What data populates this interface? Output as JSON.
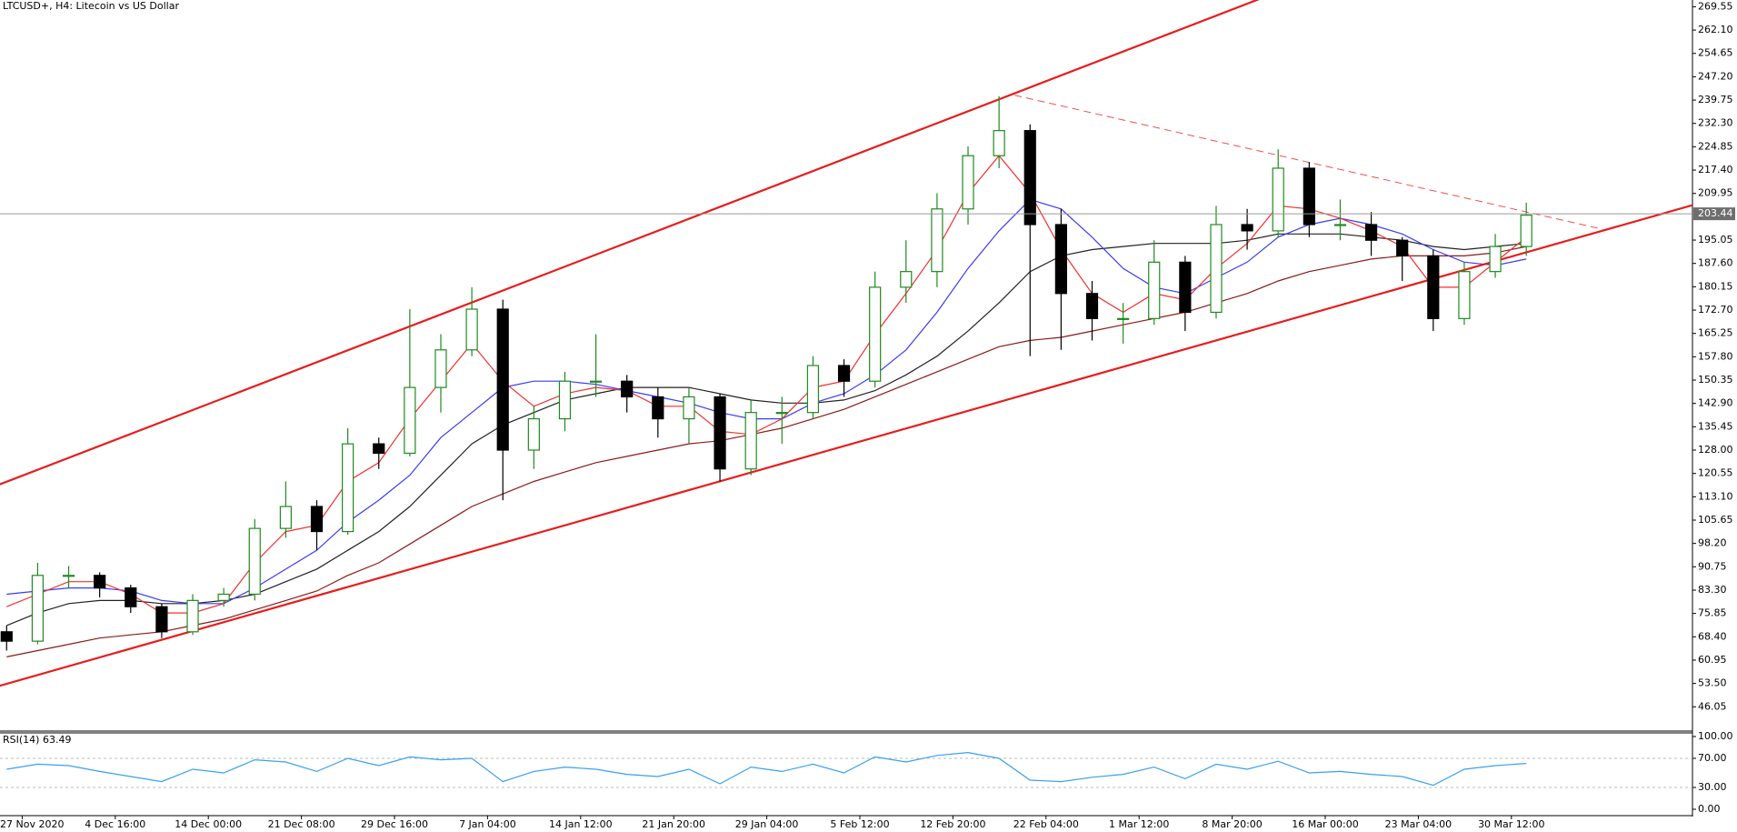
{
  "chart_data": {
    "type": "candlestick",
    "title": "LTCUSD+, H4:  Litecoin vs US Dollar",
    "ylim": [
      38.3,
      271.7
    ],
    "yticks": [
      46.05,
      {
        "value": 53.5,
        "label": "53.50"
      },
      60.95,
      {
        "value": 68.4,
        "label": "68.40"
      },
      75.85,
      {
        "value": 83.3,
        "label": "83.30"
      },
      90.75,
      {
        "value": 98.2,
        "label": "98.20"
      },
      105.65,
      {
        "value": 113.1,
        "label": "113.10"
      },
      120.55,
      {
        "value": 128,
        "label": "128.00"
      },
      135.45,
      {
        "value": 142.9,
        "label": "142.90"
      },
      150.35,
      {
        "value": 157.8,
        "label": "157.80"
      },
      165.25,
      {
        "value": 172.7,
        "label": "172.70"
      },
      180.15,
      {
        "value": 187.6,
        "label": "187.60"
      },
      195.05,
      209.95,
      {
        "value": 217.4,
        "label": "217.40"
      },
      224.85,
      {
        "value": 232.3,
        "label": "232.30"
      },
      239.75,
      {
        "value": 247.2,
        "label": "247.20"
      },
      254.65,
      {
        "value": 262.1,
        "label": "262.10"
      },
      269.55
    ],
    "current_price": 203.44,
    "x_labels": [
      "27 Nov 2020",
      "4 Dec 16:00",
      "14 Dec 00:00",
      "21 Dec 08:00",
      "29 Dec 16:00",
      "7 Jan 04:00",
      "14 Jan 12:00",
      "21 Jan 20:00",
      "29 Jan 04:00",
      "5 Feb 12:00",
      "12 Feb 20:00",
      "22 Feb 04:00",
      "1 Mar 12:00",
      "8 Mar 20:00",
      "16 Mar 00:00",
      "23 Mar 04:00",
      "30 Mar 12:00"
    ],
    "up_color": "#1f8a1f",
    "down_color": "#000000",
    "candles": {
      "open": [
        70,
        67,
        88,
        88,
        84,
        78,
        70,
        80,
        82,
        103,
        110,
        102,
        130,
        127,
        148,
        160,
        173,
        128,
        138,
        150,
        150,
        145,
        138,
        145,
        122,
        140,
        140,
        155,
        150,
        180,
        185,
        205,
        222,
        230,
        200,
        178,
        170,
        170,
        188,
        172,
        200,
        198,
        218,
        200,
        200,
        195,
        190,
        170,
        185,
        193
      ],
      "high": [
        72,
        92,
        91,
        89,
        85,
        79,
        82,
        84,
        106,
        118,
        112,
        135,
        132,
        173,
        165,
        180,
        176,
        142,
        153,
        165,
        152,
        148,
        148,
        146,
        144,
        145,
        158,
        157,
        185,
        195,
        210,
        225,
        241,
        232,
        205,
        182,
        175,
        195,
        190,
        206,
        205,
        224,
        220,
        208,
        204,
        196,
        192,
        188,
        197,
        207
      ],
      "low": [
        64,
        66,
        84,
        81,
        76,
        68,
        69,
        78,
        80,
        100,
        96,
        101,
        122,
        126,
        140,
        158,
        112,
        122,
        134,
        145,
        140,
        132,
        130,
        118,
        120,
        130,
        138,
        145,
        148,
        175,
        180,
        200,
        218,
        158,
        160,
        163,
        162,
        168,
        166,
        170,
        192,
        196,
        196,
        195,
        190,
        182,
        166,
        168,
        183,
        190
      ],
      "close": [
        67,
        88,
        88,
        84,
        78,
        70,
        80,
        82,
        103,
        110,
        102,
        130,
        127,
        148,
        160,
        173,
        128,
        138,
        150,
        150,
        145,
        138,
        145,
        122,
        140,
        140,
        155,
        150,
        180,
        185,
        205,
        222,
        230,
        200,
        178,
        170,
        170,
        188,
        172,
        200,
        198,
        218,
        200,
        200,
        195,
        190,
        170,
        185,
        193,
        203
      ]
    },
    "series": [
      {
        "color": "#8b1a1a",
        "values": [
          62,
          64,
          66,
          68,
          69,
          70,
          72,
          74,
          77,
          80,
          83,
          88,
          92,
          98,
          104,
          110,
          114,
          118,
          121,
          124,
          126,
          128,
          130,
          131,
          133,
          135,
          138,
          141,
          145,
          149,
          153,
          157,
          161,
          163,
          164,
          166,
          168,
          170,
          172,
          175,
          178,
          182,
          185,
          187,
          189,
          190,
          190,
          190,
          191,
          193
        ]
      },
      {
        "color": "#222222",
        "values": [
          72,
          76,
          79,
          80,
          80,
          79,
          79,
          80,
          82,
          86,
          90,
          96,
          102,
          110,
          120,
          130,
          136,
          140,
          144,
          146,
          148,
          148,
          148,
          146,
          144,
          143,
          143,
          144,
          147,
          152,
          158,
          166,
          175,
          185,
          190,
          192,
          193,
          194,
          194,
          194,
          195,
          197,
          197,
          197,
          196,
          195,
          193,
          192,
          193,
          194
        ]
      },
      {
        "color": "#3b3bf0",
        "values": [
          82,
          83,
          84,
          84,
          83,
          80,
          79,
          79,
          84,
          90,
          96,
          105,
          112,
          120,
          132,
          140,
          148,
          150,
          150,
          149,
          147,
          145,
          143,
          140,
          138,
          138,
          143,
          146,
          152,
          160,
          172,
          186,
          198,
          208,
          205,
          196,
          186,
          180,
          178,
          183,
          188,
          196,
          200,
          202,
          200,
          197,
          192,
          188,
          187,
          189
        ]
      },
      {
        "color": "#f03030",
        "values": [
          78,
          82,
          86,
          86,
          82,
          76,
          76,
          79,
          92,
          102,
          104,
          118,
          124,
          138,
          150,
          162,
          150,
          142,
          146,
          148,
          147,
          142,
          142,
          134,
          133,
          138,
          148,
          150,
          165,
          178,
          192,
          210,
          222,
          210,
          192,
          178,
          172,
          178,
          176,
          186,
          194,
          206,
          205,
          202,
          198,
          193,
          180,
          180,
          188,
          196
        ]
      }
    ],
    "trendlines": [
      {
        "color": "#e81c1c",
        "dashed": false,
        "extend": true,
        "points": [
          [
            -0.21,
            117.1
          ],
          [
            32.5,
            241.9
          ]
        ]
      },
      {
        "color": "#e81c1c",
        "dashed": false,
        "extend": true,
        "points": [
          [
            -0.21,
            52.8
          ],
          [
            54.36,
            206.2
          ]
        ]
      },
      {
        "color": "#f05050",
        "dashed": true,
        "extend": false,
        "points": [
          [
            32.5,
            241.3
          ],
          [
            51.46,
            198.5
          ]
        ]
      }
    ],
    "indicator": {
      "title": "RSI(14) 63.49",
      "color": "#3aa0ee",
      "ylim": [
        0,
        100
      ],
      "yticks": [
        {
          "value": 0,
          "label": "0.00"
        },
        {
          "value": 30,
          "label": "30.00"
        },
        {
          "value": 70,
          "label": "70.00"
        },
        {
          "value": 100,
          "label": "100.00"
        }
      ],
      "levels": [
        30,
        70
      ],
      "values": [
        55,
        62,
        60,
        52,
        45,
        38,
        55,
        50,
        68,
        65,
        52,
        70,
        60,
        72,
        68,
        70,
        38,
        52,
        58,
        55,
        48,
        45,
        55,
        35,
        58,
        52,
        62,
        50,
        72,
        65,
        74,
        78,
        70,
        40,
        38,
        44,
        48,
        58,
        42,
        62,
        55,
        66,
        50,
        52,
        48,
        45,
        33,
        55,
        60,
        63
      ]
    }
  }
}
